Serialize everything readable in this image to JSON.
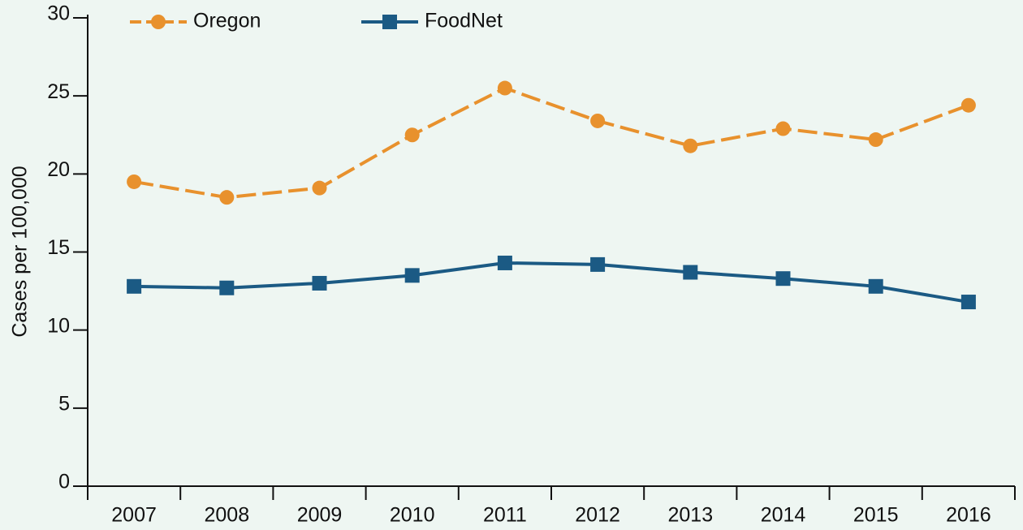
{
  "chart_data": {
    "type": "line",
    "y_label": "Cases per 100,000",
    "categories": [
      "2007",
      "2008",
      "2009",
      "2010",
      "2011",
      "2012",
      "2013",
      "2014",
      "2015",
      "2016"
    ],
    "series": [
      {
        "name": "Oregon",
        "color": "#e8912d",
        "dashed": true,
        "marker": "circle",
        "values": [
          19.5,
          18.5,
          19.1,
          22.5,
          25.5,
          23.4,
          21.8,
          22.9,
          22.2,
          24.4
        ]
      },
      {
        "name": "FoodNet",
        "color": "#1b5a84",
        "dashed": false,
        "marker": "square",
        "values": [
          12.8,
          12.7,
          13.0,
          13.5,
          14.3,
          14.2,
          13.7,
          13.3,
          12.8,
          11.8
        ]
      }
    ],
    "ylim": [
      0,
      30
    ],
    "yticks": [
      0,
      5,
      10,
      15,
      20,
      25,
      30
    ],
    "grid": false,
    "legend": "top-left"
  }
}
